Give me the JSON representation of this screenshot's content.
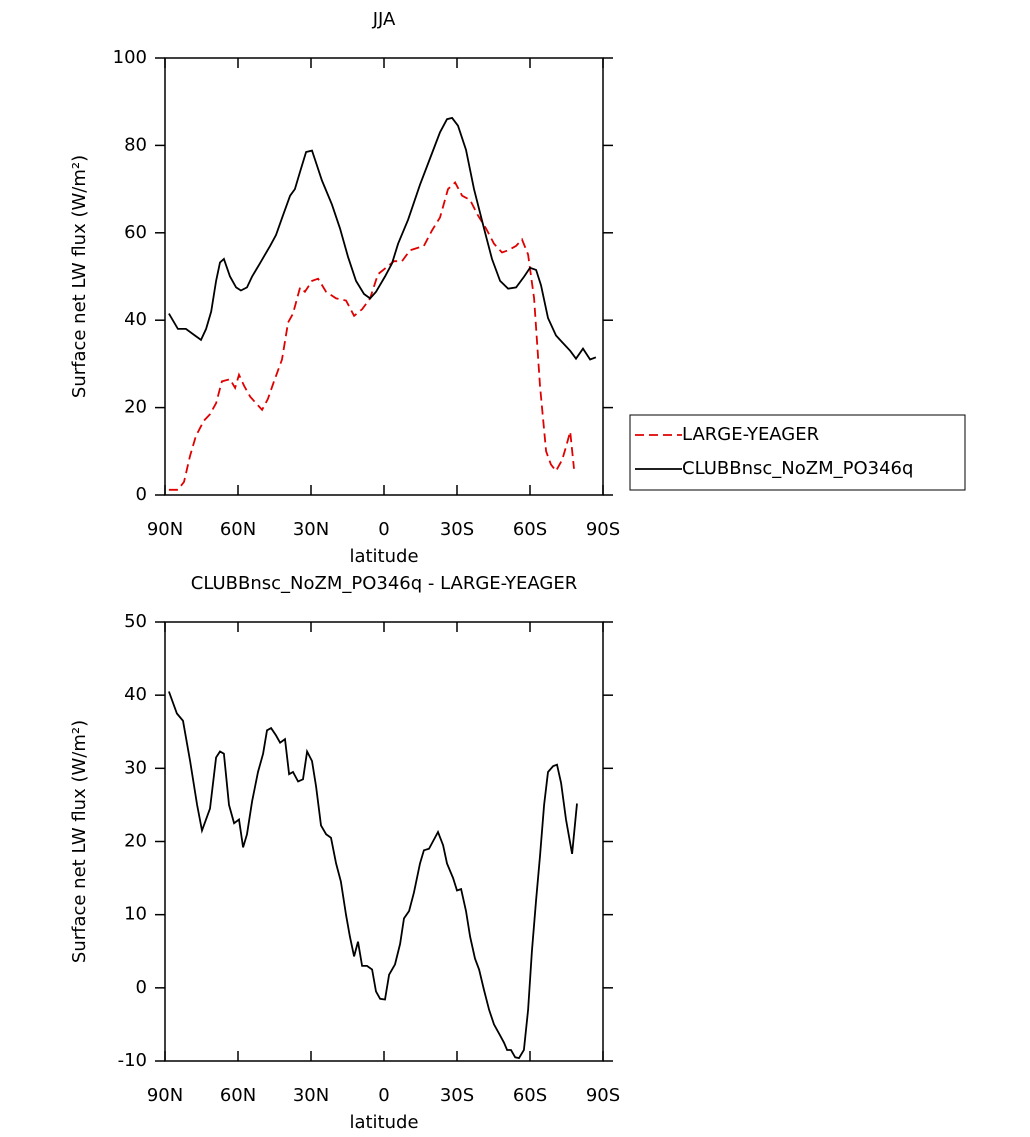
{
  "chart_data": [
    {
      "type": "line",
      "title": "JJA",
      "x_label": "latitude",
      "y_label": "Surface net LW flux (W/m²)",
      "xlim": [
        90,
        -90
      ],
      "xticks": [
        {
          "value": 90,
          "label": "90N"
        },
        {
          "value": 60,
          "label": "60N"
        },
        {
          "value": 30,
          "label": "30N"
        },
        0,
        {
          "value": -30,
          "label": "30S"
        },
        {
          "value": -60,
          "label": "60S"
        },
        {
          "value": -90,
          "label": "90S"
        }
      ],
      "ylim": [
        0,
        100
      ],
      "yticks": [
        0,
        20,
        40,
        60,
        80,
        100
      ],
      "legend": "right",
      "series": [
        {
          "name": "LARGE-YEAGER",
          "color": "#e00000",
          "linestyle": "dashed",
          "x": [
            88.4,
            84.7,
            82.2,
            79.7,
            77.3,
            74.0,
            71.5,
            69.0,
            66.6,
            63.3,
            61.2,
            59.6,
            57.5,
            55.0,
            52.6,
            50.1,
            47.7,
            45.2,
            41.9,
            39.4,
            37.4,
            34.5,
            32.5,
            29.6,
            27.1,
            23.8,
            19.7,
            15.6,
            12.3,
            9.0,
            5.7,
            2.5,
            -0.8,
            -4.1,
            -7.4,
            -10.7,
            -16.4,
            -19.7,
            -23.0,
            -26.3,
            -29.2,
            -32.1,
            -35.4,
            -38.6,
            -41.9,
            -45.2,
            -48.5,
            -51.0,
            -54.3,
            -56.7,
            -59.2,
            -61.7,
            -64.1,
            -66.6,
            -68.6,
            -70.7,
            -73.2,
            -74.8,
            -76.5,
            -78.1
          ],
          "values": [
            1.2,
            1.2,
            3,
            9,
            13.5,
            17,
            18.5,
            21,
            26,
            26.5,
            24.5,
            27.5,
            25,
            22.5,
            21,
            19.5,
            22,
            26,
            31,
            39.5,
            41.5,
            47.5,
            46.5,
            49,
            49.5,
            46.5,
            45,
            44.5,
            41,
            42.5,
            45,
            50.5,
            52,
            53.5,
            53.5,
            56,
            57,
            60.5,
            63.5,
            70,
            71.5,
            68.5,
            67.5,
            64,
            61,
            57.5,
            55.5,
            56,
            57,
            58.5,
            55,
            45,
            25,
            10,
            7,
            5.5,
            8,
            11,
            14.5,
            6
          ]
        },
        {
          "name": "CLUBBnsc_NoZM_PO346q",
          "color": "#000000",
          "linestyle": "solid",
          "x": [
            88.4,
            84.7,
            81.4,
            77.7,
            75.2,
            73.1,
            71.0,
            69.0,
            67.4,
            65.8,
            63.3,
            60.8,
            58.8,
            56.3,
            54.2,
            51.0,
            46.8,
            44.4,
            41.5,
            38.6,
            36.6,
            34.5,
            32.0,
            29.6,
            27.9,
            25.5,
            21.4,
            18.1,
            14.8,
            11.5,
            8.2,
            5.7,
            3.3,
            -0.4,
            -3.3,
            -5.8,
            -9.9,
            -14.8,
            -18.9,
            -23.0,
            -25.9,
            -28.0,
            -30.4,
            -33.7,
            -37.0,
            -41.1,
            -44.4,
            -47.7,
            -51.0,
            -54.3,
            -57.6,
            -60.0,
            -62.5,
            -64.5,
            -67.4,
            -70.7,
            -73.2,
            -76.5,
            -78.9,
            -81.8,
            -84.7,
            -87.1
          ],
          "values": [
            41.5,
            38,
            38,
            36.5,
            35.5,
            38,
            42,
            49,
            53.2,
            54,
            50,
            47.5,
            46.8,
            47.5,
            50,
            53,
            57,
            59.5,
            64,
            68.5,
            70,
            74,
            78.5,
            78.8,
            76,
            72,
            66.5,
            61,
            54.5,
            49,
            46,
            45,
            46.5,
            50,
            53,
            57.5,
            63,
            71,
            77,
            83,
            86,
            86.3,
            84.5,
            79,
            70,
            61,
            54,
            49,
            47.2,
            47.5,
            50,
            52,
            51.5,
            48,
            40.5,
            36.5,
            35,
            33,
            31.2,
            33.5,
            31,
            31.5
          ]
        }
      ]
    },
    {
      "type": "line",
      "title": "CLUBBnsc_NoZM_PO346q - LARGE-YEAGER",
      "x_label": "latitude",
      "y_label": "Surface net LW flux (W/m²)",
      "xlim": [
        90,
        -90
      ],
      "xticks": [
        {
          "value": 90,
          "label": "90N"
        },
        {
          "value": 60,
          "label": "60N"
        },
        {
          "value": 30,
          "label": "30N"
        },
        0,
        {
          "value": -30,
          "label": "30S"
        },
        {
          "value": -60,
          "label": "60S"
        },
        {
          "value": -90,
          "label": "90S"
        }
      ],
      "ylim": [
        -10,
        50
      ],
      "yticks": [
        -10,
        0,
        10,
        20,
        30,
        40,
        50
      ],
      "color": "#000000",
      "linestyle": "solid",
      "x": [
        88.4,
        85.1,
        82.6,
        79.7,
        76.8,
        74.8,
        71.5,
        69.0,
        67.4,
        65.8,
        63.7,
        61.6,
        59.6,
        57.9,
        56.3,
        54.2,
        51.8,
        49.7,
        48.1,
        46.4,
        44.4,
        42.7,
        40.7,
        39.0,
        37.4,
        35.3,
        33.3,
        31.6,
        29.6,
        27.9,
        25.9,
        23.8,
        21.8,
        19.7,
        17.7,
        15.6,
        14.0,
        12.3,
        10.7,
        9.0,
        7.0,
        4.9,
        3.3,
        1.6,
        -0.4,
        -2.1,
        -4.5,
        -6.6,
        -8.2,
        -10.3,
        -12.3,
        -14.8,
        -16.4,
        -18.5,
        -20.1,
        -22.2,
        -24.3,
        -25.9,
        -28.4,
        -30.0,
        -31.7,
        -33.7,
        -35.4,
        -37.4,
        -39.1,
        -41.1,
        -43.2,
        -45.2,
        -47.7,
        -49.3,
        -50.6,
        -52.2,
        -53.9,
        -55.5,
        -57.5,
        -59.2,
        -60.8,
        -62.5,
        -64.1,
        -65.8,
        -67.4,
        -69.5,
        -71.1,
        -72.8,
        -74.8,
        -77.3,
        -79.3
      ],
      "values": [
        40.5,
        37.5,
        36.5,
        31,
        25,
        21.5,
        24.5,
        31.5,
        32.3,
        32,
        25,
        22.5,
        23,
        19.2,
        21,
        25.5,
        29.5,
        32,
        35.2,
        35.5,
        34.5,
        33.5,
        34,
        29.2,
        29.5,
        28.2,
        28.5,
        32.3,
        31,
        27.5,
        22.2,
        21,
        20.5,
        17,
        14.5,
        10,
        7,
        4.3,
        6.3,
        3,
        3,
        2.5,
        -0.5,
        -1.5,
        -1.6,
        1.8,
        3.2,
        6,
        9.5,
        10.5,
        13,
        17,
        18.8,
        19,
        20,
        21.3,
        19.5,
        17,
        15,
        13.3,
        13.5,
        10.5,
        7,
        4,
        2.5,
        -0.3,
        -3,
        -5,
        -6.5,
        -7.5,
        -8.5,
        -8.5,
        -9.5,
        -9.6,
        -8.5,
        -3,
        5,
        12,
        18,
        25,
        29.5,
        30.3,
        30.5,
        28,
        23,
        18.3,
        25.2
      ]
    }
  ]
}
